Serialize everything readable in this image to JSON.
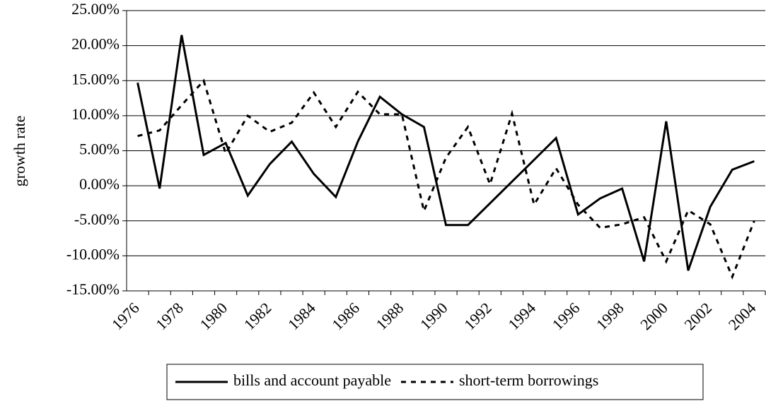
{
  "chart_data": {
    "type": "line",
    "y_label": "growth rate",
    "categories": [
      "1976",
      null,
      "1978",
      null,
      "1980",
      null,
      "1982",
      null,
      "1984",
      null,
      "1986",
      null,
      "1988",
      null,
      "1990",
      null,
      "1992",
      null,
      "1994",
      null,
      "1996",
      null,
      "1998",
      null,
      "2000",
      null,
      "2002",
      null,
      "2004"
    ],
    "series": [
      {
        "name": "bills and account payable",
        "color": "#000000",
        "dash": "solid",
        "values": [
          14.7,
          -0.4,
          21.5,
          4.4,
          6.1,
          -1.4,
          3.1,
          6.3,
          1.7,
          -1.6,
          6.3,
          12.7,
          10.2,
          8.4,
          -5.6,
          -5.6,
          -2.5,
          0.6,
          3.7,
          6.8,
          -4.1,
          -1.8,
          -0.4,
          -10.8,
          9.2,
          -12.1,
          -3.0,
          2.3,
          3.5
        ]
      },
      {
        "name": "short-term borrowings",
        "color": "#000000",
        "dash": "dashed",
        "values": [
          7.1,
          7.9,
          11.5,
          15.0,
          4.6,
          10.0,
          7.7,
          9.0,
          13.3,
          8.4,
          13.4,
          10.2,
          10.2,
          -3.6,
          4.0,
          8.4,
          0.2,
          10.3,
          -2.7,
          2.5,
          -2.7,
          -6.0,
          -5.5,
          -4.5,
          -10.8,
          -3.5,
          -5.5,
          -13.0,
          -5.0
        ]
      }
    ],
    "ylim": [
      -15,
      25
    ],
    "yticks": [
      {
        "value": -15,
        "label": "-15.00%"
      },
      {
        "value": -10,
        "label": "-10.00%"
      },
      {
        "value": -5,
        "label": "-5.00%"
      },
      {
        "value": 0,
        "label": "0.00%"
      },
      {
        "value": 5,
        "label": "5.00%"
      },
      {
        "value": 10,
        "label": "10.00%"
      },
      {
        "value": 15,
        "label": "15.00%"
      },
      {
        "value": 20,
        "label": "20.00%"
      },
      {
        "value": 25,
        "label": "25.00%"
      }
    ],
    "grid": true,
    "legend": "bottom"
  }
}
